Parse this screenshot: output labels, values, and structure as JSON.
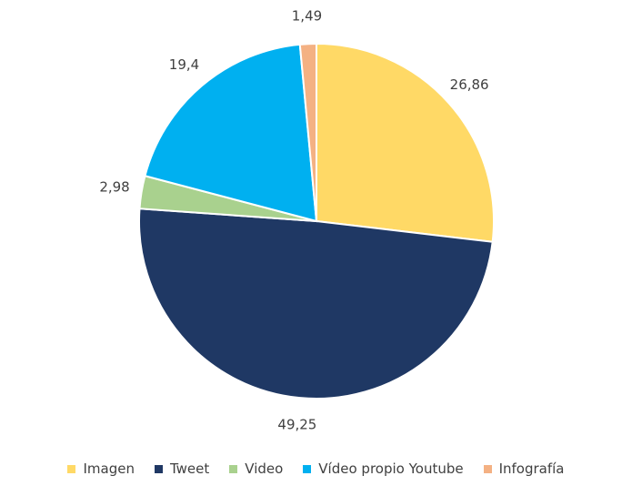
{
  "chart_data": {
    "type": "pie",
    "categories": [
      "Imagen",
      "Tweet",
      "Video",
      "Vídeo propio Youtube",
      "Infografía"
    ],
    "values": [
      26.86,
      49.25,
      2.98,
      19.4,
      1.49
    ],
    "value_labels": [
      "26,86",
      "49,25",
      "2,98",
      "19,4",
      "1,49"
    ],
    "colors": [
      "#FFD966",
      "#1F3864",
      "#A9D18E",
      "#00B0F0",
      "#F4B183"
    ],
    "legend": "bottom"
  }
}
